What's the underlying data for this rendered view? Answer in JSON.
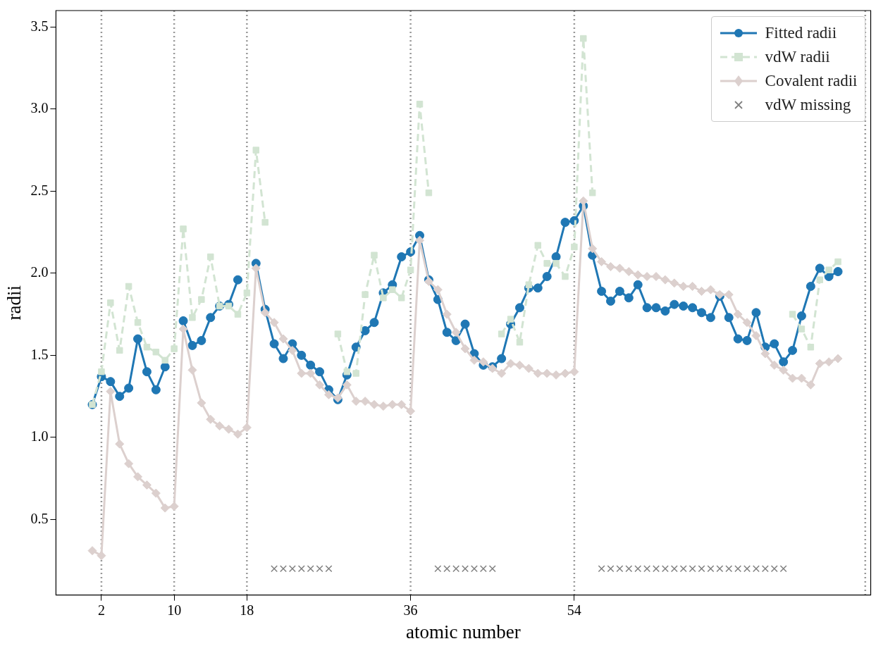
{
  "chart_data": {
    "type": "line",
    "xlabel": "atomic number",
    "ylabel": "radii",
    "x": [
      1,
      2,
      3,
      4,
      5,
      6,
      7,
      8,
      9,
      10,
      11,
      12,
      13,
      14,
      15,
      16,
      17,
      18,
      19,
      20,
      21,
      22,
      23,
      24,
      25,
      26,
      27,
      28,
      29,
      30,
      31,
      32,
      33,
      34,
      35,
      36,
      37,
      38,
      39,
      40,
      41,
      42,
      43,
      44,
      45,
      46,
      47,
      48,
      49,
      50,
      51,
      52,
      53,
      54,
      55,
      56,
      57,
      58,
      59,
      60,
      61,
      62,
      63,
      64,
      65,
      66,
      67,
      68,
      69,
      70,
      71,
      72,
      73,
      74,
      75,
      76,
      77,
      78,
      79,
      80,
      81,
      82,
      83
    ],
    "xlim": [
      -3,
      86.6
    ],
    "xticks": [
      2,
      10,
      18,
      36,
      54
    ],
    "ylim": [
      0.04,
      3.6
    ],
    "yticks": [
      {
        "value": 0.5,
        "label": "0.5"
      },
      {
        "value": 1,
        "label": "1.0"
      },
      {
        "value": 1.5,
        "label": "1.5"
      },
      {
        "value": 2,
        "label": "2.0"
      },
      {
        "value": 2.5,
        "label": "2.5"
      },
      {
        "value": 3,
        "label": "3.0"
      },
      {
        "value": 3.5,
        "label": "3.5"
      }
    ],
    "grid": false,
    "legend": "top right",
    "ref_lines": [
      {
        "axis": "x",
        "value": 2,
        "color": "#999999",
        "line_style": "dotted"
      },
      {
        "axis": "x",
        "value": 10,
        "color": "#999999",
        "line_style": "dotted"
      },
      {
        "axis": "x",
        "value": 18,
        "color": "#999999",
        "line_style": "dotted"
      },
      {
        "axis": "x",
        "value": 36,
        "color": "#999999",
        "line_style": "dotted"
      },
      {
        "axis": "x",
        "value": 54,
        "color": "#999999",
        "line_style": "dotted"
      },
      {
        "axis": "x",
        "value": 86,
        "color": "#999999",
        "line_style": "dotted"
      }
    ],
    "series": [
      {
        "name": "Fitted radii",
        "color": "#1f77b4",
        "marker": "circle",
        "line_style": "solid",
        "values": [
          1.2,
          1.37,
          1.34,
          1.25,
          1.3,
          1.6,
          1.4,
          1.29,
          1.43,
          null,
          1.71,
          1.56,
          1.59,
          1.73,
          1.8,
          1.81,
          1.96,
          null,
          2.06,
          1.78,
          1.57,
          1.48,
          1.57,
          1.5,
          1.44,
          1.4,
          1.29,
          1.23,
          1.38,
          1.55,
          1.65,
          1.7,
          1.88,
          1.93,
          2.1,
          2.13,
          2.23,
          1.96,
          1.84,
          1.64,
          1.59,
          1.69,
          1.51,
          1.44,
          1.43,
          1.48,
          1.69,
          1.79,
          1.91,
          1.91,
          1.98,
          2.1,
          2.31,
          2.32,
          2.41,
          2.11,
          1.89,
          1.83,
          1.89,
          1.85,
          1.93,
          1.79,
          1.79,
          1.77,
          1.81,
          1.8,
          1.79,
          1.76,
          1.73,
          1.86,
          1.73,
          1.6,
          1.59,
          1.76,
          1.55,
          1.57,
          1.46,
          1.53,
          1.74,
          1.92,
          2.03,
          1.98,
          2.01
        ]
      },
      {
        "name": "vdW radii",
        "color": "#d2e4d2",
        "marker": "square",
        "line_style": "dashed",
        "values": [
          1.2,
          1.4,
          1.82,
          1.53,
          1.92,
          1.7,
          1.55,
          1.52,
          1.47,
          1.54,
          2.27,
          1.73,
          1.84,
          2.1,
          1.8,
          1.8,
          1.75,
          1.88,
          2.75,
          2.31,
          null,
          null,
          null,
          null,
          null,
          null,
          null,
          1.63,
          1.4,
          1.39,
          1.87,
          2.11,
          1.85,
          1.9,
          1.85,
          2.02,
          3.03,
          2.49,
          null,
          null,
          null,
          null,
          null,
          null,
          null,
          1.63,
          1.72,
          1.58,
          1.93,
          2.17,
          2.06,
          2.06,
          1.98,
          2.16,
          3.43,
          2.49,
          null,
          null,
          null,
          null,
          null,
          null,
          null,
          null,
          null,
          null,
          null,
          null,
          null,
          null,
          null,
          null,
          null,
          null,
          null,
          null,
          null,
          1.75,
          1.66,
          1.55,
          1.96,
          2.02,
          2.07
        ]
      },
      {
        "name": "Covalent radii",
        "color": "#dcd0ce",
        "marker": "diamond",
        "line_style": "solid",
        "values": [
          0.31,
          0.28,
          1.28,
          0.96,
          0.84,
          0.76,
          0.71,
          0.66,
          0.57,
          0.58,
          1.66,
          1.41,
          1.21,
          1.11,
          1.07,
          1.05,
          1.02,
          1.06,
          2.03,
          1.76,
          1.7,
          1.6,
          1.53,
          1.39,
          1.39,
          1.32,
          1.26,
          1.24,
          1.32,
          1.22,
          1.22,
          1.2,
          1.19,
          1.2,
          1.2,
          1.16,
          2.2,
          1.95,
          1.9,
          1.75,
          1.64,
          1.54,
          1.47,
          1.46,
          1.42,
          1.39,
          1.45,
          1.44,
          1.42,
          1.39,
          1.39,
          1.38,
          1.39,
          1.4,
          2.44,
          2.15,
          2.07,
          2.04,
          2.03,
          2.01,
          1.99,
          1.98,
          1.98,
          1.96,
          1.94,
          1.92,
          1.92,
          1.89,
          1.9,
          1.87,
          1.87,
          1.75,
          1.7,
          1.62,
          1.51,
          1.44,
          1.41,
          1.36,
          1.36,
          1.32,
          1.45,
          1.46,
          1.48
        ]
      },
      {
        "name": "vdW missing",
        "type": "scatter",
        "color": "#808080",
        "marker": "cross",
        "x": [
          21,
          22,
          23,
          24,
          25,
          26,
          27,
          39,
          40,
          41,
          42,
          43,
          44,
          45,
          57,
          58,
          59,
          60,
          61,
          62,
          63,
          64,
          65,
          66,
          67,
          68,
          69,
          70,
          71,
          72,
          73,
          74,
          75,
          76,
          77
        ],
        "values": [
          0.2,
          0.2,
          0.2,
          0.2,
          0.2,
          0.2,
          0.2,
          0.2,
          0.2,
          0.2,
          0.2,
          0.2,
          0.2,
          0.2,
          0.2,
          0.2,
          0.2,
          0.2,
          0.2,
          0.2,
          0.2,
          0.2,
          0.2,
          0.2,
          0.2,
          0.2,
          0.2,
          0.2,
          0.2,
          0.2,
          0.2,
          0.2,
          0.2,
          0.2,
          0.2
        ]
      }
    ]
  }
}
